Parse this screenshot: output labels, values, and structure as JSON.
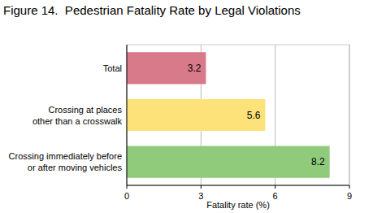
{
  "chart_data": {
    "type": "bar",
    "title": "Figure 14.  Pedestrian Fatality Rate by Legal Violations",
    "orientation": "horizontal",
    "categories": [
      "Total",
      "Crossing at places\nother than a crosswalk",
      "Crossing immediately before\nor after moving vehicles"
    ],
    "values": [
      3.2,
      5.6,
      8.2
    ],
    "colors": [
      "#d97a8b",
      "#fde27a",
      "#8fcb7a"
    ],
    "x_label": "Fatality rate (%)",
    "xlim": [
      0,
      9
    ],
    "xticks": [
      0,
      3,
      6,
      9
    ],
    "grid": true,
    "data_labels": true
  }
}
